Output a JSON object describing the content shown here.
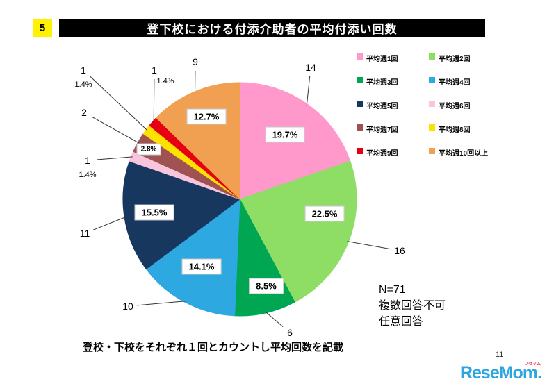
{
  "slide": {
    "number": "5",
    "title": "登下校における付添介助者の平均付添い回数",
    "note_lines": [
      "N=71",
      "複数回答不可",
      "任意回答"
    ],
    "caption": "登校・下校をそれぞれ１回とカウントし平均回数を記載",
    "page_number": "11",
    "logo": {
      "text": "ReseMom",
      "dot": ".",
      "ruby": "リセマム"
    }
  },
  "chart_data": {
    "type": "pie",
    "title": "登下校における付添介助者の平均付添い回数",
    "total_responses": 71,
    "n_label": "N=71",
    "direction": "clockwise",
    "start_angle_deg": 0,
    "legend_position": "top-right",
    "slices": [
      {
        "label": "平均週1回",
        "count": 14,
        "percent": 19.7,
        "percent_label": "19.7%",
        "color": "#FF99CC"
      },
      {
        "label": "平均週2回",
        "count": 16,
        "percent": 22.5,
        "percent_label": "22.5%",
        "color": "#8EDD65"
      },
      {
        "label": "平均週3回",
        "count": 6,
        "percent": 8.5,
        "percent_label": "8.5%",
        "color": "#00A651"
      },
      {
        "label": "平均週4回",
        "count": 10,
        "percent": 14.1,
        "percent_label": "14.1%",
        "color": "#2EA8E0"
      },
      {
        "label": "平均週5回",
        "count": 11,
        "percent": 15.5,
        "percent_label": "15.5%",
        "color": "#17375E"
      },
      {
        "label": "平均週6回",
        "count": 1,
        "percent": 1.4,
        "percent_label": "1.4%",
        "color": "#F9C5DC"
      },
      {
        "label": "平均週7回",
        "count": 2,
        "percent": 2.8,
        "percent_label": "2.8%",
        "color": "#A05252"
      },
      {
        "label": "平均週8回",
        "count": 1,
        "percent": 1.4,
        "percent_label": "1.4%",
        "color": "#FFE100"
      },
      {
        "label": "平均週9回",
        "count": 1,
        "percent": 1.4,
        "percent_label": "1.4%",
        "color": "#E60012"
      },
      {
        "label": "平均週10回以上",
        "count": 9,
        "percent": 12.7,
        "percent_label": "12.7%",
        "color": "#F0A050"
      }
    ]
  }
}
